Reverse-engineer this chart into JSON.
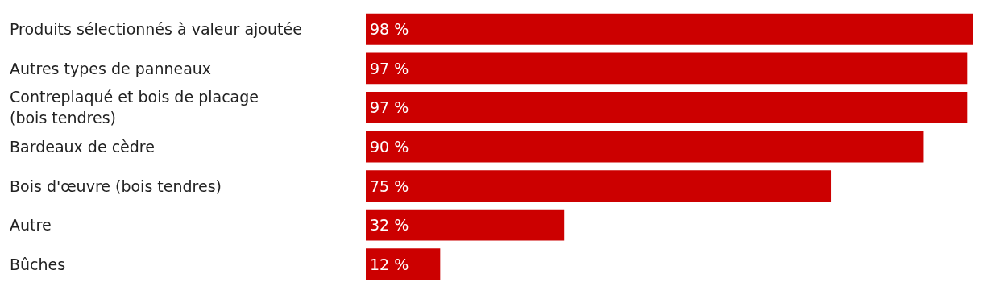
{
  "chart_data": {
    "type": "bar",
    "orientation": "horizontal",
    "categories": [
      "Produits sélectionnés à valeur ajoutée",
      "Autres types de panneaux",
      "Contreplaqué et bois de placage\n(bois tendres)",
      "Bardeaux de cèdre",
      "Bois d'œuvre (bois tendres)",
      "Autre",
      "Bûches"
    ],
    "values": [
      98,
      97,
      97,
      90,
      75,
      32,
      12
    ],
    "value_labels": [
      "98 %",
      "97 %",
      "97 %",
      "90 %",
      "75 %",
      "32 %",
      "12 %"
    ],
    "color": "#cc0000",
    "xlim": [
      0,
      98
    ]
  }
}
